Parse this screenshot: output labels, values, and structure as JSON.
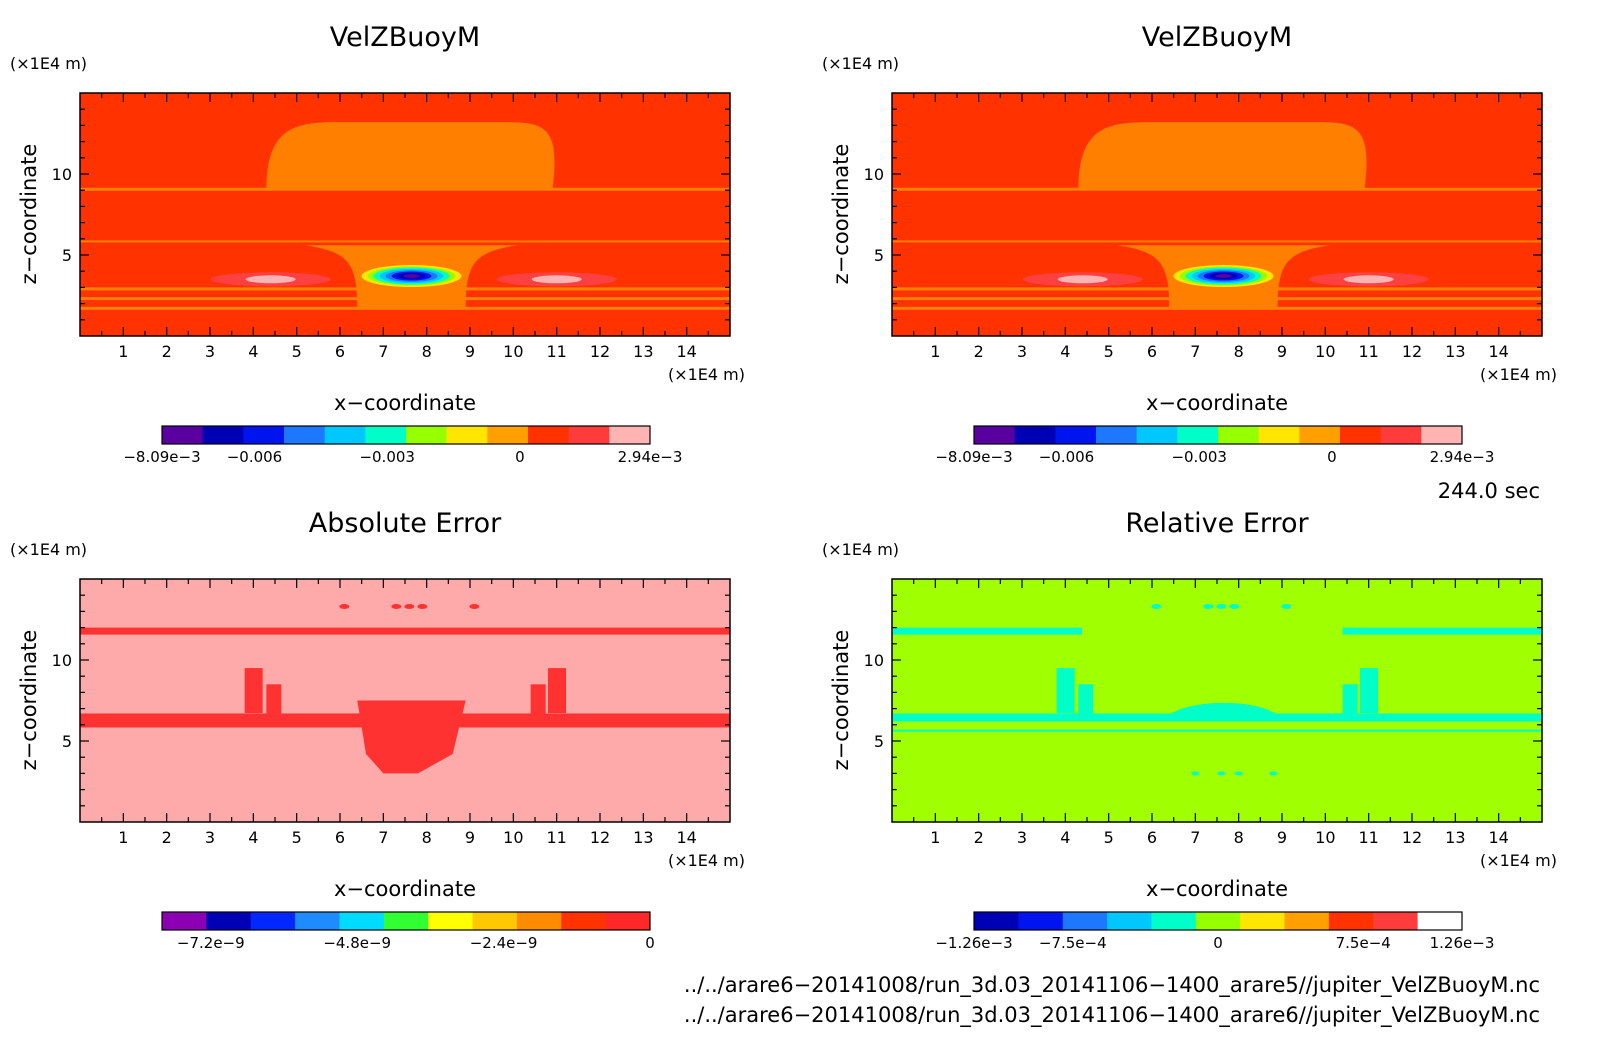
{
  "panels": [
    {
      "title": "VelZBuoyM",
      "unit_left": "(×1E4 m)",
      "unit_bottom": "(×1E4 m)",
      "xlabel": "x−coordinate",
      "ylabel": "z−coordinate",
      "x_ticks": [
        "1",
        "2",
        "3",
        "4",
        "5",
        "6",
        "7",
        "8",
        "9",
        "10",
        "11",
        "12",
        "13",
        "14"
      ],
      "y_ticks": [
        "5",
        "10"
      ],
      "colorbar": {
        "colors": [
          "#5a00a0",
          "#0000b4",
          "#0014f0",
          "#1e78ff",
          "#00c8ff",
          "#00ffc8",
          "#96ff00",
          "#ffe600",
          "#ffa000",
          "#ff3200",
          "#ff3c3c",
          "#ffb4b4"
        ],
        "labels": [
          "−8.09e−3",
          "−0.006",
          "−0.003",
          "0",
          "2.94e−3"
        ]
      }
    },
    {
      "title": "VelZBuoyM",
      "unit_left": "(×1E4 m)",
      "unit_bottom": "(×1E4 m)",
      "xlabel": "x−coordinate",
      "ylabel": "z−coordinate",
      "x_ticks": [
        "1",
        "2",
        "3",
        "4",
        "5",
        "6",
        "7",
        "8",
        "9",
        "10",
        "11",
        "12",
        "13",
        "14"
      ],
      "y_ticks": [
        "5",
        "10"
      ],
      "colorbar": {
        "colors": [
          "#5a00a0",
          "#0000b4",
          "#0014f0",
          "#1e78ff",
          "#00c8ff",
          "#00ffc8",
          "#96ff00",
          "#ffe600",
          "#ffa000",
          "#ff3200",
          "#ff3c3c",
          "#ffb4b4"
        ],
        "labels": [
          "−8.09e−3",
          "−0.006",
          "−0.003",
          "0",
          "2.94e−3"
        ]
      }
    },
    {
      "title": "Absolute Error",
      "unit_left": "(×1E4 m)",
      "unit_bottom": "(×1E4 m)",
      "xlabel": "x−coordinate",
      "ylabel": "z−coordinate",
      "x_ticks": [
        "1",
        "2",
        "3",
        "4",
        "5",
        "6",
        "7",
        "8",
        "9",
        "10",
        "11",
        "12",
        "13",
        "14"
      ],
      "y_ticks": [
        "5",
        "10"
      ],
      "colorbar": {
        "colors": [
          "#8c00b4",
          "#0000b4",
          "#0028ff",
          "#1e8cff",
          "#00dcff",
          "#32ff32",
          "#ffff00",
          "#ffc800",
          "#ff8c00",
          "#ff3200",
          "#ff2828"
        ],
        "labels": [
          "−7.2e−9",
          "−4.8e−9",
          "−2.4e−9",
          "0"
        ]
      }
    },
    {
      "title": "Relative Error",
      "unit_left": "(×1E4 m)",
      "unit_bottom": "(×1E4 m)",
      "xlabel": "x−coordinate",
      "ylabel": "z−coordinate",
      "x_ticks": [
        "1",
        "2",
        "3",
        "4",
        "5",
        "6",
        "7",
        "8",
        "9",
        "10",
        "11",
        "12",
        "13",
        "14"
      ],
      "y_ticks": [
        "5",
        "10"
      ],
      "colorbar": {
        "colors": [
          "#0000b4",
          "#0014f0",
          "#1e78ff",
          "#00c8ff",
          "#00ffc8",
          "#96ff00",
          "#ffe600",
          "#ffa000",
          "#ff3200",
          "#ff3c3c",
          "#ffffff"
        ],
        "labels": [
          "−1.26e−3",
          "−7.5e−4",
          "0",
          "7.5e−4",
          "1.26e−3"
        ]
      }
    }
  ],
  "time_label": "244.0 sec",
  "file_paths": [
    "../../arare6−20141008/run_3d.03_20141106−1400_arare5//jupiter_VelZBuoyM.nc",
    "../../arare6−20141008/run_3d.03_20141106−1400_arare6//jupiter_VelZBuoyM.nc"
  ],
  "chart_data": [
    {
      "type": "heatmap",
      "title": "VelZBuoyM",
      "xlabel": "x−coordinate",
      "ylabel": "z−coordinate",
      "x_unit": "(×1E4 m)",
      "y_unit": "(×1E4 m)",
      "xlim": [
        0,
        15
      ],
      "ylim": [
        0,
        15
      ],
      "value_range": [
        -0.00809,
        0.00294
      ],
      "colorbar_ticks": [
        -0.00809,
        -0.006,
        -0.003,
        0,
        0.00294
      ]
    },
    {
      "type": "heatmap",
      "title": "VelZBuoyM",
      "xlabel": "x−coordinate",
      "ylabel": "z−coordinate",
      "x_unit": "(×1E4 m)",
      "y_unit": "(×1E4 m)",
      "xlim": [
        0,
        15
      ],
      "ylim": [
        0,
        15
      ],
      "value_range": [
        -0.00809,
        0.00294
      ],
      "colorbar_ticks": [
        -0.00809,
        -0.006,
        -0.003,
        0,
        0.00294
      ]
    },
    {
      "type": "heatmap",
      "title": "Absolute Error",
      "xlabel": "x−coordinate",
      "ylabel": "z−coordinate",
      "x_unit": "(×1E4 m)",
      "y_unit": "(×1E4 m)",
      "xlim": [
        0,
        15
      ],
      "ylim": [
        0,
        15
      ],
      "value_range": [
        -8e-09,
        0
      ],
      "colorbar_ticks": [
        -7.2e-09,
        -4.8e-09,
        -2.4e-09,
        0
      ]
    },
    {
      "type": "heatmap",
      "title": "Relative Error",
      "xlabel": "x−coordinate",
      "ylabel": "z−coordinate",
      "x_unit": "(×1E4 m)",
      "y_unit": "(×1E4 m)",
      "xlim": [
        0,
        15
      ],
      "ylim": [
        0,
        15
      ],
      "value_range": [
        -0.00126,
        0.00126
      ],
      "colorbar_ticks": [
        -0.00126,
        -0.00075,
        0,
        0.00075,
        0.00126
      ]
    }
  ]
}
